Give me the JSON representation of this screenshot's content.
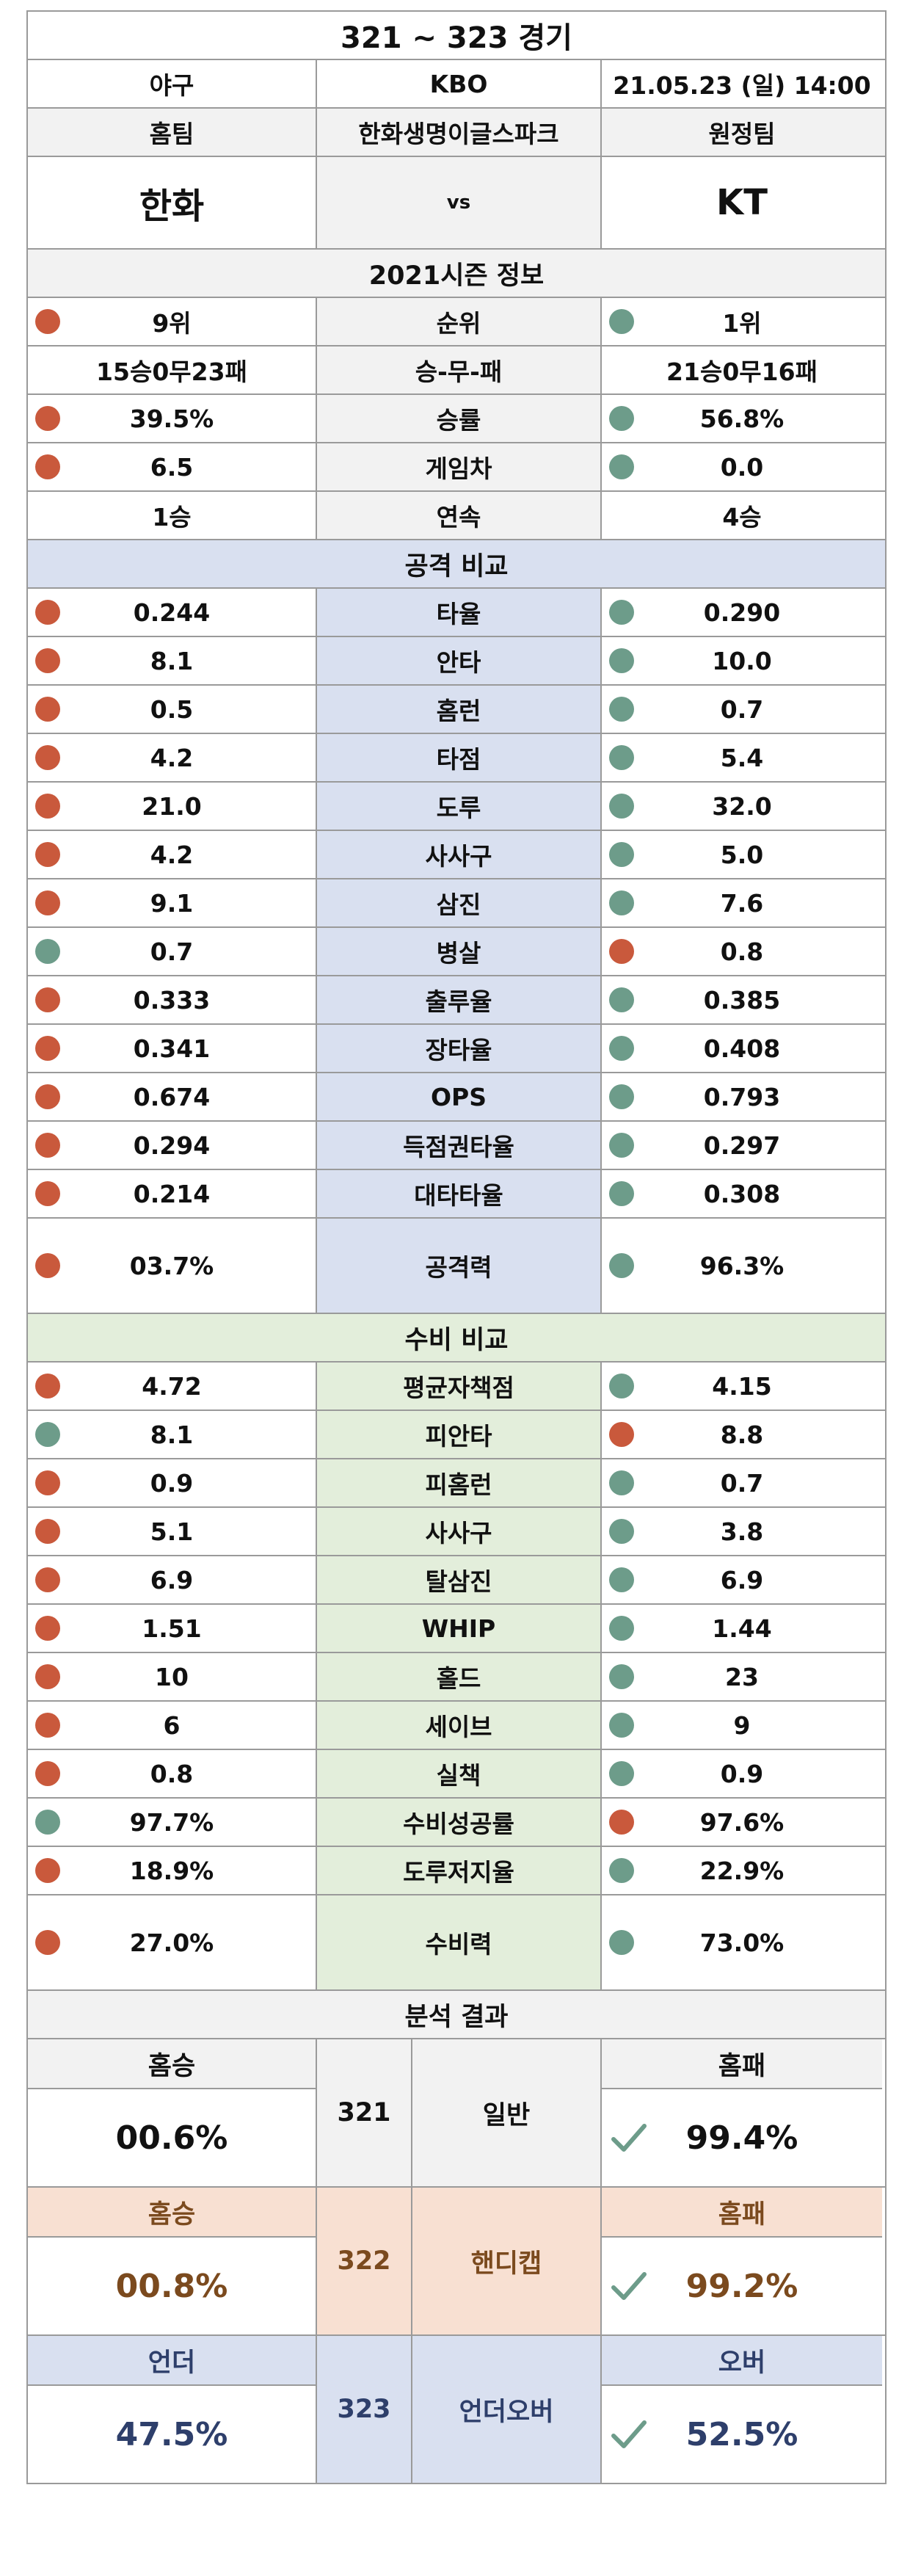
{
  "title": "321 ~ 323 경기",
  "match_info": {
    "sport": "야구",
    "league": "KBO",
    "datetime": "21.05.23 (일) 14:00"
  },
  "team_labels": {
    "home": "홈팀",
    "stadium": "한화생명이글스파크",
    "away": "원정팀"
  },
  "teams": {
    "home": "한화",
    "vs": "vs",
    "away": "KT"
  },
  "colors": {
    "red_dot": "#c9593c",
    "green_dot": "#6d9c8a",
    "attack_bg": "#d9e0f0",
    "defense_bg": "#e3eedb",
    "handicap_bg": "#f8e0d2"
  },
  "season": {
    "title": "2021시즌 정보",
    "rows": [
      {
        "home": "9위",
        "label": "순위",
        "away": "1위",
        "home_dot": "red",
        "away_dot": "green"
      },
      {
        "home": "15승0무23패",
        "label": "승-무-패",
        "away": "21승0무16패",
        "home_dot": "",
        "away_dot": ""
      },
      {
        "home": "39.5%",
        "label": "승률",
        "away": "56.8%",
        "home_dot": "red",
        "away_dot": "green"
      },
      {
        "home": "6.5",
        "label": "게임차",
        "away": "0.0",
        "home_dot": "red",
        "away_dot": "green"
      },
      {
        "home": "1승",
        "label": "연속",
        "away": "4승",
        "home_dot": "",
        "away_dot": ""
      }
    ]
  },
  "attack": {
    "title": "공격 비교",
    "rows": [
      {
        "home": "0.244",
        "label": "타율",
        "away": "0.290",
        "home_dot": "red",
        "away_dot": "green"
      },
      {
        "home": "8.1",
        "label": "안타",
        "away": "10.0",
        "home_dot": "red",
        "away_dot": "green"
      },
      {
        "home": "0.5",
        "label": "홈런",
        "away": "0.7",
        "home_dot": "red",
        "away_dot": "green"
      },
      {
        "home": "4.2",
        "label": "타점",
        "away": "5.4",
        "home_dot": "red",
        "away_dot": "green"
      },
      {
        "home": "21.0",
        "label": "도루",
        "away": "32.0",
        "home_dot": "red",
        "away_dot": "green"
      },
      {
        "home": "4.2",
        "label": "사사구",
        "away": "5.0",
        "home_dot": "red",
        "away_dot": "green"
      },
      {
        "home": "9.1",
        "label": "삼진",
        "away": "7.6",
        "home_dot": "red",
        "away_dot": "green"
      },
      {
        "home": "0.7",
        "label": "병살",
        "away": "0.8",
        "home_dot": "green",
        "away_dot": "red"
      },
      {
        "home": "0.333",
        "label": "출루율",
        "away": "0.385",
        "home_dot": "red",
        "away_dot": "green"
      },
      {
        "home": "0.341",
        "label": "장타율",
        "away": "0.408",
        "home_dot": "red",
        "away_dot": "green"
      },
      {
        "home": "0.674",
        "label": "OPS",
        "away": "0.793",
        "home_dot": "red",
        "away_dot": "green"
      },
      {
        "home": "0.294",
        "label": "득점권타율",
        "away": "0.297",
        "home_dot": "red",
        "away_dot": "green"
      },
      {
        "home": "0.214",
        "label": "대타타율",
        "away": "0.308",
        "home_dot": "red",
        "away_dot": "green"
      }
    ],
    "summary": {
      "home": "03.7%",
      "label": "공격력",
      "away": "96.3%",
      "home_dot": "red",
      "away_dot": "green"
    }
  },
  "defense": {
    "title": "수비 비교",
    "rows": [
      {
        "home": "4.72",
        "label": "평균자책점",
        "away": "4.15",
        "home_dot": "red",
        "away_dot": "green"
      },
      {
        "home": "8.1",
        "label": "피안타",
        "away": "8.8",
        "home_dot": "green",
        "away_dot": "red"
      },
      {
        "home": "0.9",
        "label": "피홈런",
        "away": "0.7",
        "home_dot": "red",
        "away_dot": "green"
      },
      {
        "home": "5.1",
        "label": "사사구",
        "away": "3.8",
        "home_dot": "red",
        "away_dot": "green"
      },
      {
        "home": "6.9",
        "label": "탈삼진",
        "away": "6.9",
        "home_dot": "red",
        "away_dot": "green"
      },
      {
        "home": "1.51",
        "label": "WHIP",
        "away": "1.44",
        "home_dot": "red",
        "away_dot": "green"
      },
      {
        "home": "10",
        "label": "홀드",
        "away": "23",
        "home_dot": "red",
        "away_dot": "green"
      },
      {
        "home": "6",
        "label": "세이브",
        "away": "9",
        "home_dot": "red",
        "away_dot": "green"
      },
      {
        "home": "0.8",
        "label": "실책",
        "away": "0.9",
        "home_dot": "red",
        "away_dot": "green"
      },
      {
        "home": "97.7%",
        "label": "수비성공률",
        "away": "97.6%",
        "home_dot": "green",
        "away_dot": "red"
      },
      {
        "home": "18.9%",
        "label": "도루저지율",
        "away": "22.9%",
        "home_dot": "red",
        "away_dot": "green"
      }
    ],
    "summary": {
      "home": "27.0%",
      "label": "수비력",
      "away": "73.0%",
      "home_dot": "red",
      "away_dot": "green"
    }
  },
  "analysis": {
    "title": "분석 결과",
    "blocks": [
      {
        "id": "321",
        "type": "일반",
        "left_label": "홈승",
        "left_value": "00.6%",
        "right_label": "홈패",
        "right_value": "99.4%",
        "pick": "right",
        "theme": "gray"
      },
      {
        "id": "322",
        "type": "핸디캡",
        "left_label": "홈승",
        "left_value": "00.8%",
        "right_label": "홈패",
        "right_value": "99.2%",
        "pick": "right",
        "theme": "peach"
      },
      {
        "id": "323",
        "type": "언더오버",
        "left_label": "언더",
        "left_value": "47.5%",
        "right_label": "오버",
        "right_value": "52.5%",
        "pick": "right",
        "theme": "blue"
      }
    ]
  }
}
